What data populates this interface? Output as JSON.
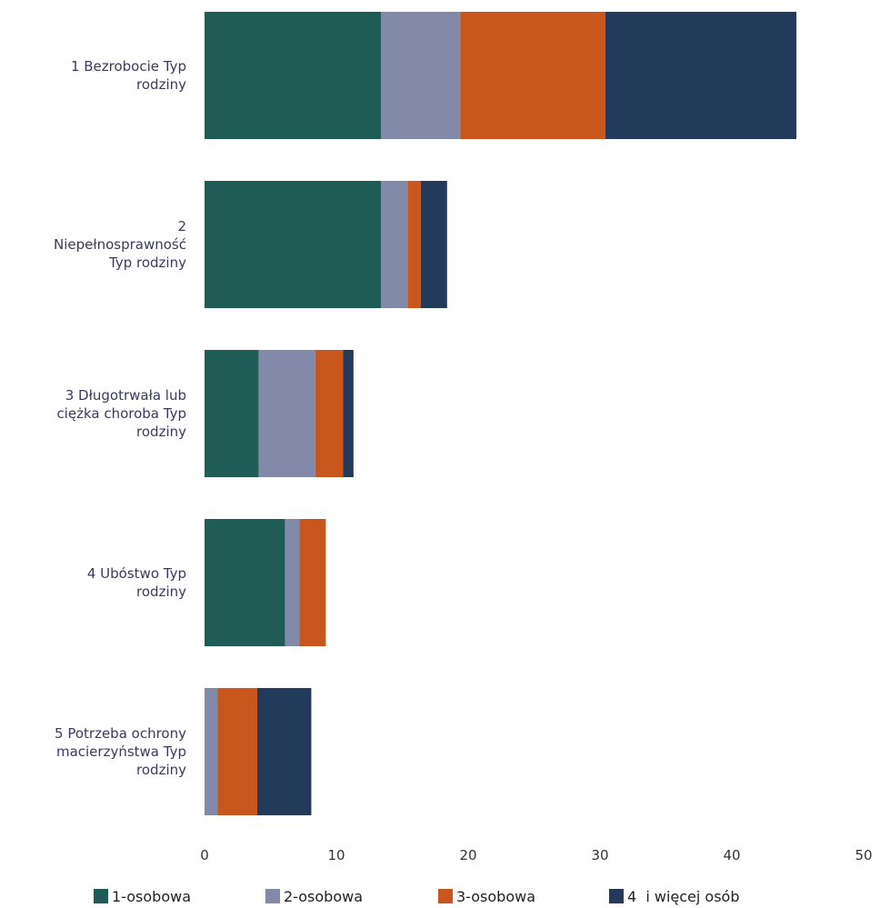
{
  "chart_data": {
    "type": "bar",
    "orientation": "horizontal",
    "stacked": true,
    "title": "",
    "xlabel": "",
    "ylabel": "",
    "xlim": [
      0,
      50
    ],
    "xticks": [
      0,
      10,
      20,
      30,
      40,
      50
    ],
    "grid": false,
    "legend_position": "bottom",
    "categories": [
      [
        "1 Bezrobocie Typ",
        "rodziny"
      ],
      [
        "2",
        "Niepełnosprawność",
        "Typ rodziny"
      ],
      [
        "3 Długotrwała lub",
        "ciężka choroba Typ",
        "rodziny"
      ],
      [
        "4 Ubóstwo Typ",
        "rodziny"
      ],
      [
        "5 Potrzeba ochrony",
        "macierzyństwa Typ",
        "rodziny"
      ]
    ],
    "series": [
      {
        "name": "1-osobowa",
        "color": "#1e5c55",
        "values": [
          13.4,
          13.4,
          4.1,
          6.1,
          0
        ]
      },
      {
        "name": "2-osobowa",
        "color": "#8389a8",
        "values": [
          6.0,
          2.0,
          4.3,
          1.1,
          1.0
        ]
      },
      {
        "name": "3-osobowa",
        "color": "#c9561c",
        "values": [
          11.0,
          1.0,
          2.1,
          2.0,
          3.0
        ]
      },
      {
        "name": "4  i więcej osób",
        "color": "#243a5a",
        "values": [
          14.5,
          2.0,
          0.8,
          0,
          4.1
        ]
      }
    ]
  }
}
